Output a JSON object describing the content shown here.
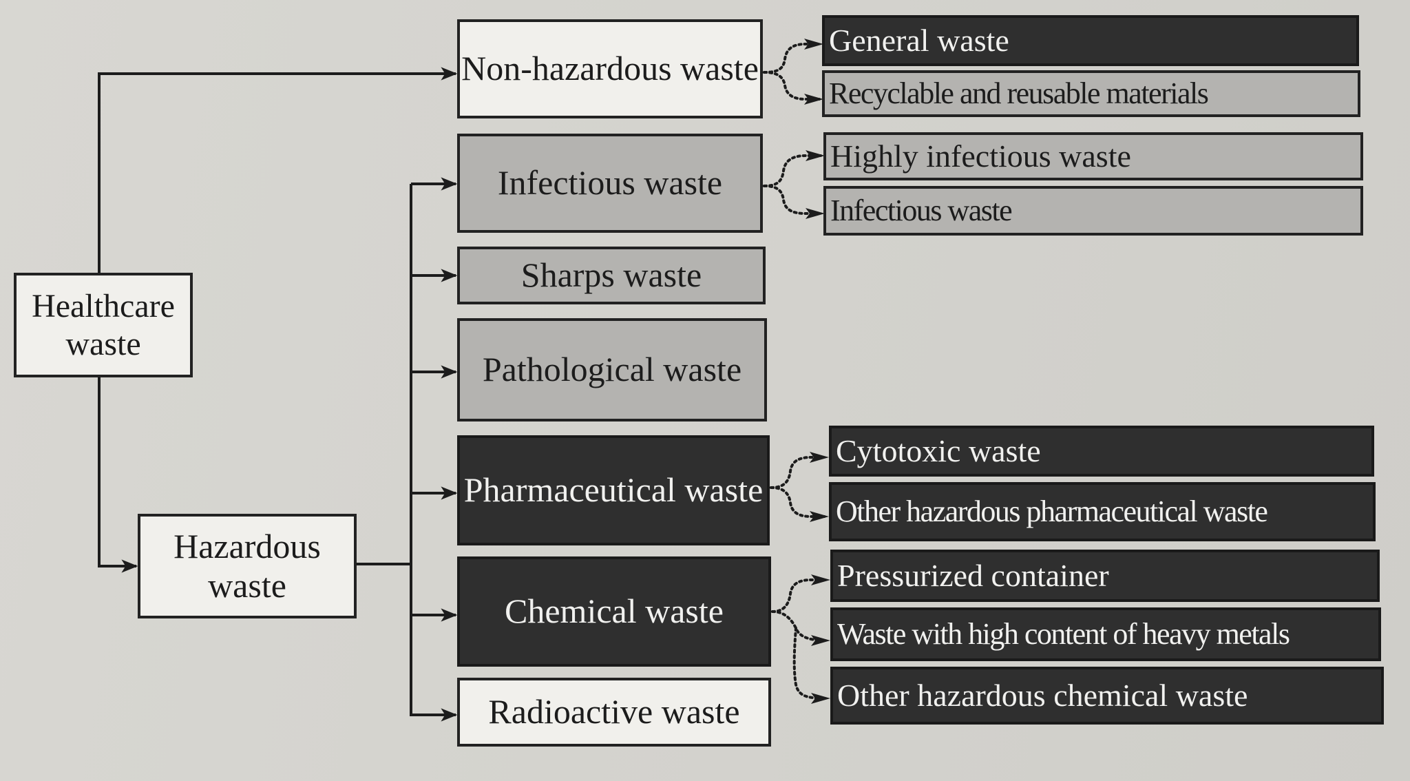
{
  "root": {
    "label": "Healthcare waste"
  },
  "hazardous": {
    "label": "Hazardous waste"
  },
  "categories": [
    {
      "id": "non-hazardous",
      "label": "Non-hazardous waste"
    },
    {
      "id": "infectious",
      "label": "Infectious waste"
    },
    {
      "id": "sharps",
      "label": "Sharps waste"
    },
    {
      "id": "pathological",
      "label": "Pathological waste"
    },
    {
      "id": "pharmaceutical",
      "label": "Pharmaceutical waste"
    },
    {
      "id": "chemical",
      "label": "Chemical waste"
    },
    {
      "id": "radioactive",
      "label": "Radioactive waste"
    }
  ],
  "subcategories": [
    {
      "parent": "non-hazardous",
      "label": "General waste"
    },
    {
      "parent": "non-hazardous",
      "label": "Recyclable and reusable materials"
    },
    {
      "parent": "infectious",
      "label": "Highly infectious waste"
    },
    {
      "parent": "infectious",
      "label": "Infectious waste"
    },
    {
      "parent": "pharmaceutical",
      "label": "Cytotoxic waste"
    },
    {
      "parent": "pharmaceutical",
      "label": "Other hazardous pharmaceutical waste"
    },
    {
      "parent": "chemical",
      "label": "Pressurized container"
    },
    {
      "parent": "chemical",
      "label": "Waste with high content of heavy metals"
    },
    {
      "parent": "chemical",
      "label": "Other hazardous chemical waste"
    }
  ],
  "colors": {
    "box_white": "#f1f0ec",
    "box_gray": "#b4b3b0",
    "box_dark": "#2f2f2f",
    "line": "#1c1c1c",
    "page": "#d4d3ce"
  }
}
